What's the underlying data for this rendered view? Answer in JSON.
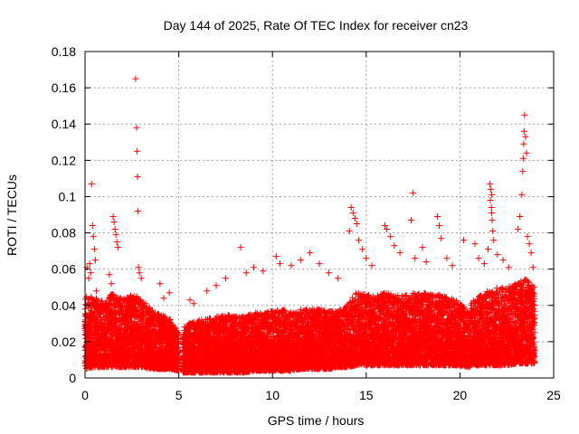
{
  "chart_data": {
    "type": "scatter",
    "title": "Day 144 of 2025, Rate Of TEC Index for receiver cn23",
    "xlabel": "GPS time / hours",
    "ylabel": "ROTI / TECUs",
    "xlim": [
      0,
      25
    ],
    "ylim": [
      0,
      0.18
    ],
    "x_ticks": [
      0,
      5,
      10,
      15,
      20,
      25
    ],
    "x_tick_labels": [
      "0",
      "5",
      "10",
      "15",
      "20",
      "25"
    ],
    "y_ticks": [
      0,
      0.02,
      0.04,
      0.06,
      0.08,
      0.1,
      0.12,
      0.14,
      0.16,
      0.18
    ],
    "y_tick_labels": [
      "0",
      "0.02",
      "0.04",
      "0.06",
      "0.08",
      "0.1",
      "0.12",
      "0.14",
      "0.16",
      "0.18"
    ],
    "grid": true,
    "marker": "+",
    "color": "#ff0000",
    "series": [
      {
        "name": "ROTI",
        "points": [
          [
            0.1,
            0.061
          ],
          [
            0.2,
            0.055
          ],
          [
            0.25,
            0.063
          ],
          [
            0.3,
            0.058
          ],
          [
            0.35,
            0.107
          ],
          [
            0.4,
            0.084
          ],
          [
            0.45,
            0.078
          ],
          [
            0.5,
            0.071
          ],
          [
            0.55,
            0.065
          ],
          [
            0.6,
            0.048
          ],
          [
            1.5,
            0.089
          ],
          [
            1.55,
            0.086
          ],
          [
            1.6,
            0.082
          ],
          [
            1.65,
            0.079
          ],
          [
            1.7,
            0.075
          ],
          [
            1.75,
            0.072
          ],
          [
            1.3,
            0.057
          ],
          [
            1.4,
            0.052
          ],
          [
            2.7,
            0.165
          ],
          [
            2.75,
            0.138
          ],
          [
            2.78,
            0.125
          ],
          [
            2.8,
            0.111
          ],
          [
            2.82,
            0.092
          ],
          [
            2.85,
            0.061
          ],
          [
            2.9,
            0.058
          ],
          [
            3.0,
            0.055
          ],
          [
            4.0,
            0.052
          ],
          [
            4.5,
            0.047
          ],
          [
            4.2,
            0.044
          ],
          [
            5.3,
            0.028
          ],
          [
            5.6,
            0.043
          ],
          [
            5.8,
            0.041
          ],
          [
            6.5,
            0.048
          ],
          [
            7.0,
            0.051
          ],
          [
            7.5,
            0.055
          ],
          [
            8.3,
            0.072
          ],
          [
            8.6,
            0.058
          ],
          [
            9.0,
            0.061
          ],
          [
            9.5,
            0.059
          ],
          [
            10.2,
            0.067
          ],
          [
            10.4,
            0.063
          ],
          [
            11.0,
            0.062
          ],
          [
            11.5,
            0.065
          ],
          [
            12.0,
            0.069
          ],
          [
            12.5,
            0.063
          ],
          [
            13.0,
            0.058
          ],
          [
            13.5,
            0.055
          ],
          [
            14.2,
            0.094
          ],
          [
            14.3,
            0.091
          ],
          [
            14.4,
            0.088
          ],
          [
            14.5,
            0.085
          ],
          [
            14.1,
            0.081
          ],
          [
            14.6,
            0.076
          ],
          [
            14.8,
            0.071
          ],
          [
            15.0,
            0.066
          ],
          [
            15.3,
            0.062
          ],
          [
            16.0,
            0.084
          ],
          [
            16.1,
            0.082
          ],
          [
            16.3,
            0.078
          ],
          [
            16.5,
            0.073
          ],
          [
            16.8,
            0.069
          ],
          [
            17.5,
            0.102
          ],
          [
            17.4,
            0.087
          ],
          [
            17.6,
            0.066
          ],
          [
            18.0,
            0.072
          ],
          [
            18.2,
            0.064
          ],
          [
            18.8,
            0.089
          ],
          [
            18.9,
            0.084
          ],
          [
            19.0,
            0.077
          ],
          [
            19.3,
            0.066
          ],
          [
            19.6,
            0.062
          ],
          [
            20.2,
            0.076
          ],
          [
            20.8,
            0.074
          ],
          [
            21.0,
            0.066
          ],
          [
            21.3,
            0.063
          ],
          [
            21.6,
            0.107
          ],
          [
            21.65,
            0.104
          ],
          [
            21.7,
            0.101
          ],
          [
            21.62,
            0.098
          ],
          [
            21.68,
            0.094
          ],
          [
            21.7,
            0.091
          ],
          [
            21.72,
            0.087
          ],
          [
            21.75,
            0.081
          ],
          [
            21.8,
            0.076
          ],
          [
            21.5,
            0.071
          ],
          [
            22.0,
            0.068
          ],
          [
            22.3,
            0.065
          ],
          [
            22.6,
            0.061
          ],
          [
            23.1,
            0.082
          ],
          [
            23.2,
            0.089
          ],
          [
            23.3,
            0.101
          ],
          [
            23.35,
            0.114
          ],
          [
            23.38,
            0.121
          ],
          [
            23.4,
            0.129
          ],
          [
            23.42,
            0.136
          ],
          [
            23.45,
            0.145
          ],
          [
            23.5,
            0.133
          ],
          [
            23.55,
            0.124
          ],
          [
            23.6,
            0.078
          ],
          [
            23.7,
            0.074
          ],
          [
            23.8,
            0.069
          ],
          [
            23.9,
            0.061
          ]
        ],
        "density_band": [
          [
            0.0,
            0.005,
            0.045
          ],
          [
            0.5,
            0.006,
            0.045
          ],
          [
            1.0,
            0.006,
            0.042
          ],
          [
            1.5,
            0.006,
            0.047
          ],
          [
            2.0,
            0.006,
            0.044
          ],
          [
            2.5,
            0.006,
            0.046
          ],
          [
            3.0,
            0.006,
            0.044
          ],
          [
            3.5,
            0.005,
            0.038
          ],
          [
            4.0,
            0.005,
            0.035
          ],
          [
            4.5,
            0.005,
            0.033
          ],
          [
            5.0,
            0.004,
            0.025
          ],
          [
            5.2,
            0.003,
            0.025
          ],
          [
            5.5,
            0.003,
            0.03
          ],
          [
            6.0,
            0.003,
            0.032
          ],
          [
            6.5,
            0.003,
            0.033
          ],
          [
            7.0,
            0.003,
            0.034
          ],
          [
            7.5,
            0.003,
            0.035
          ],
          [
            8.0,
            0.003,
            0.034
          ],
          [
            8.5,
            0.003,
            0.034
          ],
          [
            9.0,
            0.004,
            0.036
          ],
          [
            9.5,
            0.004,
            0.036
          ],
          [
            10.0,
            0.004,
            0.037
          ],
          [
            10.5,
            0.004,
            0.038
          ],
          [
            11.0,
            0.004,
            0.036
          ],
          [
            11.5,
            0.005,
            0.038
          ],
          [
            12.0,
            0.005,
            0.038
          ],
          [
            12.5,
            0.005,
            0.038
          ],
          [
            13.0,
            0.005,
            0.037
          ],
          [
            13.5,
            0.006,
            0.037
          ],
          [
            14.0,
            0.006,
            0.04
          ],
          [
            14.5,
            0.007,
            0.048
          ],
          [
            15.0,
            0.007,
            0.046
          ],
          [
            15.5,
            0.007,
            0.045
          ],
          [
            16.0,
            0.007,
            0.047
          ],
          [
            16.5,
            0.007,
            0.046
          ],
          [
            17.0,
            0.007,
            0.046
          ],
          [
            17.5,
            0.007,
            0.047
          ],
          [
            18.0,
            0.007,
            0.047
          ],
          [
            18.5,
            0.007,
            0.046
          ],
          [
            19.0,
            0.007,
            0.046
          ],
          [
            19.5,
            0.007,
            0.044
          ],
          [
            20.0,
            0.007,
            0.042
          ],
          [
            20.5,
            0.006,
            0.035
          ],
          [
            20.6,
            0.007,
            0.042
          ],
          [
            21.0,
            0.007,
            0.045
          ],
          [
            21.5,
            0.007,
            0.048
          ],
          [
            22.0,
            0.007,
            0.05
          ],
          [
            22.5,
            0.007,
            0.05
          ],
          [
            23.0,
            0.008,
            0.052
          ],
          [
            23.5,
            0.008,
            0.055
          ],
          [
            24.0,
            0.008,
            0.05
          ]
        ]
      }
    ]
  }
}
